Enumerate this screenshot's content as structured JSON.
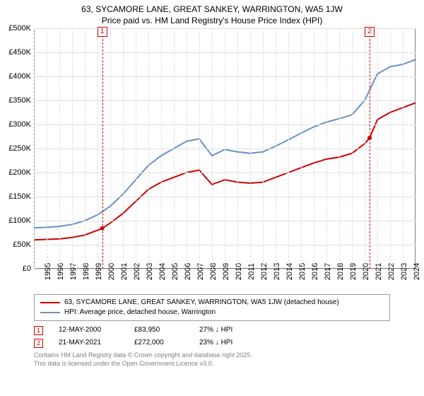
{
  "title": {
    "line1": "63, SYCAMORE LANE, GREAT SANKEY, WARRINGTON, WA5 1JW",
    "line2": "Price paid vs. HM Land Registry's House Price Index (HPI)",
    "fontsize": 12,
    "color": "#000000"
  },
  "chart": {
    "type": "line",
    "background_color": "#ffffff",
    "grid_color": "#e0e0e0",
    "grid_dash_color": "#dddddd",
    "x": {
      "min": 1995,
      "max": 2025,
      "ticks": [
        1995,
        1996,
        1997,
        1998,
        1999,
        2000,
        2001,
        2002,
        2003,
        2004,
        2005,
        2006,
        2007,
        2008,
        2009,
        2010,
        2011,
        2012,
        2013,
        2014,
        2015,
        2016,
        2017,
        2018,
        2019,
        2020,
        2021,
        2022,
        2023,
        2024
      ],
      "label_fontsize": 11,
      "label_rotation": -90
    },
    "y": {
      "min": 0,
      "max": 500000,
      "ticks": [
        0,
        50000,
        100000,
        150000,
        200000,
        250000,
        300000,
        350000,
        400000,
        450000,
        500000
      ],
      "tick_labels": [
        "£0",
        "£50K",
        "£100K",
        "£150K",
        "£200K",
        "£250K",
        "£300K",
        "£350K",
        "£400K",
        "£450K",
        "£500K"
      ],
      "label_fontsize": 11
    },
    "series": [
      {
        "name": "price_paid",
        "label": "63, SYCAMORE LANE, GREAT SANKEY, WARRINGTON, WA5 1JW (detached house)",
        "color": "#cc0000",
        "line_width": 2,
        "points": [
          [
            1995,
            60000
          ],
          [
            1996,
            61000
          ],
          [
            1997,
            62000
          ],
          [
            1998,
            65000
          ],
          [
            1999,
            70000
          ],
          [
            2000,
            80000
          ],
          [
            2000.37,
            83950
          ],
          [
            2001,
            95000
          ],
          [
            2002,
            115000
          ],
          [
            2003,
            140000
          ],
          [
            2004,
            165000
          ],
          [
            2005,
            180000
          ],
          [
            2006,
            190000
          ],
          [
            2007,
            200000
          ],
          [
            2008,
            205000
          ],
          [
            2009,
            175000
          ],
          [
            2010,
            185000
          ],
          [
            2011,
            180000
          ],
          [
            2012,
            178000
          ],
          [
            2013,
            180000
          ],
          [
            2014,
            190000
          ],
          [
            2015,
            200000
          ],
          [
            2016,
            210000
          ],
          [
            2017,
            220000
          ],
          [
            2018,
            228000
          ],
          [
            2019,
            232000
          ],
          [
            2020,
            240000
          ],
          [
            2021,
            260000
          ],
          [
            2021.39,
            272000
          ],
          [
            2022,
            310000
          ],
          [
            2023,
            325000
          ],
          [
            2024,
            335000
          ],
          [
            2025,
            345000
          ]
        ],
        "markers": [
          {
            "x": 2000.37,
            "y": 83950,
            "color": "#cc0000"
          },
          {
            "x": 2021.39,
            "y": 272000,
            "color": "#cc0000"
          }
        ]
      },
      {
        "name": "hpi",
        "label": "HPI: Average price, detached house, Warrington",
        "color": "#6a8fc5",
        "line_width": 2,
        "points": [
          [
            1995,
            85000
          ],
          [
            1996,
            86000
          ],
          [
            1997,
            88000
          ],
          [
            1998,
            92000
          ],
          [
            1999,
            100000
          ],
          [
            2000,
            112000
          ],
          [
            2001,
            130000
          ],
          [
            2002,
            155000
          ],
          [
            2003,
            185000
          ],
          [
            2004,
            215000
          ],
          [
            2005,
            235000
          ],
          [
            2006,
            250000
          ],
          [
            2007,
            265000
          ],
          [
            2008,
            270000
          ],
          [
            2009,
            235000
          ],
          [
            2010,
            248000
          ],
          [
            2011,
            243000
          ],
          [
            2012,
            240000
          ],
          [
            2013,
            243000
          ],
          [
            2014,
            255000
          ],
          [
            2015,
            268000
          ],
          [
            2016,
            282000
          ],
          [
            2017,
            295000
          ],
          [
            2018,
            305000
          ],
          [
            2019,
            312000
          ],
          [
            2020,
            320000
          ],
          [
            2021,
            350000
          ],
          [
            2022,
            405000
          ],
          [
            2023,
            420000
          ],
          [
            2024,
            425000
          ],
          [
            2025,
            435000
          ]
        ]
      }
    ],
    "event_markers": [
      {
        "id": "1",
        "x": 2000.37,
        "line_color": "#cc0000"
      },
      {
        "id": "2",
        "x": 2021.39,
        "line_color": "#cc0000"
      }
    ]
  },
  "legend": {
    "border_color": "#999999",
    "fontsize": 10,
    "items": [
      {
        "color": "#cc0000",
        "label": "63, SYCAMORE LANE, GREAT SANKEY, WARRINGTON, WA5 1JW (detached house)"
      },
      {
        "color": "#6a8fc5",
        "label": "HPI: Average price, detached house, Warrington"
      }
    ]
  },
  "transactions": {
    "fontsize": 10,
    "marker_border": "#cc0000",
    "rows": [
      {
        "id": "1",
        "date": "12-MAY-2000",
        "price": "£83,950",
        "delta": "27% ↓ HPI"
      },
      {
        "id": "2",
        "date": "21-MAY-2021",
        "price": "£272,000",
        "delta": "23% ↓ HPI"
      }
    ]
  },
  "footer": {
    "line1": "Contains HM Land Registry data © Crown copyright and database right 2025.",
    "line2": "This data is licensed under the Open Government Licence v3.0.",
    "color": "#808080",
    "fontsize": 9
  }
}
